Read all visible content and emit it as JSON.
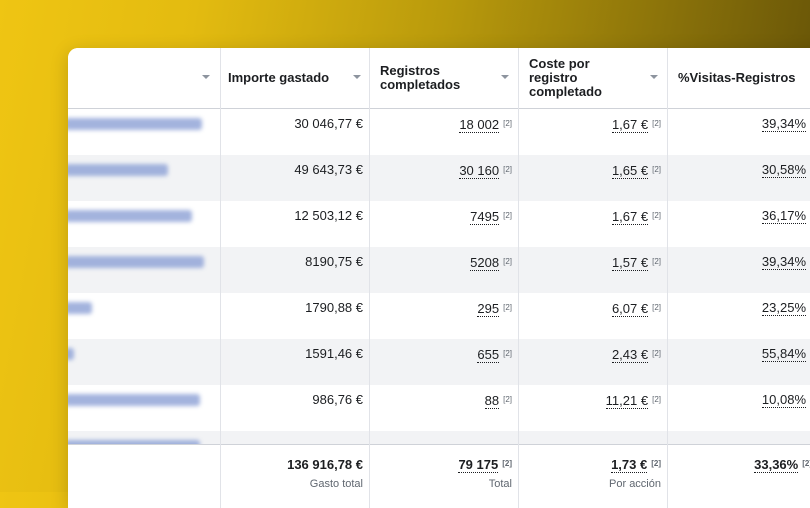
{
  "columns": [
    {
      "label": ""
    },
    {
      "label": "Importe gastado"
    },
    {
      "label": "Registros completados"
    },
    {
      "label": "Coste por registro completado"
    },
    {
      "label": "%Visitas-Registros"
    }
  ],
  "rows": [
    {
      "importe": "30 046,77 €",
      "registros": "18 002",
      "coste": "1,67 €",
      "visitas": "39,34%"
    },
    {
      "importe": "49 643,73 €",
      "registros": "30 160",
      "coste": "1,65 €",
      "visitas": "30,58%"
    },
    {
      "importe": "12 503,12 €",
      "registros": "7495",
      "coste": "1,67 €",
      "visitas": "36,17%"
    },
    {
      "importe": "8190,75 €",
      "registros": "5208",
      "coste": "1,57 €",
      "visitas": "39,34%"
    },
    {
      "importe": "1790,88 €",
      "registros": "295",
      "coste": "6,07 €",
      "visitas": "23,25%"
    },
    {
      "importe": "1591,46 €",
      "registros": "655",
      "coste": "2,43 €",
      "visitas": "55,84%"
    },
    {
      "importe": "986,76 €",
      "registros": "88",
      "coste": "11,21 €",
      "visitas": "10,08%"
    }
  ],
  "footnote_mark": "[2]",
  "totals": {
    "importe": "136 916,78 €",
    "importe_label": "Gasto total",
    "registros": "79 175",
    "registros_label": "Total",
    "coste": "1,73 €",
    "coste_label": "Por acción",
    "visitas": "33,36%"
  }
}
